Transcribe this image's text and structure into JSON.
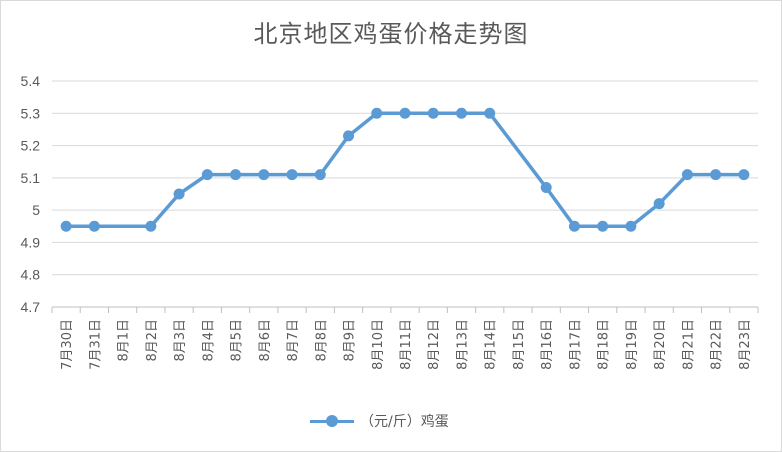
{
  "chart_data": {
    "type": "line",
    "title": "北京地区鸡蛋价格走势图",
    "categories": [
      "7月30日",
      "7月31日",
      "8月1日",
      "8月2日",
      "8月3日",
      "8月4日",
      "8月5日",
      "8月6日",
      "8月7日",
      "8月8日",
      "8月9日",
      "8月10日",
      "8月11日",
      "8月12日",
      "8月13日",
      "8月14日",
      "8月15日",
      "8月16日",
      "8月17日",
      "8月18日",
      "8月19日",
      "8月20日",
      "8月21日",
      "8月22日",
      "8月23日"
    ],
    "series": [
      {
        "name": "（元/斤）鸡蛋",
        "color": "#5b9bd5",
        "values": [
          4.95,
          4.95,
          null,
          4.95,
          5.05,
          5.11,
          5.11,
          5.11,
          5.11,
          5.11,
          5.23,
          5.3,
          5.3,
          5.3,
          5.3,
          5.3,
          null,
          5.07,
          4.95,
          4.95,
          4.95,
          5.02,
          5.11,
          5.11,
          5.11
        ]
      }
    ],
    "ylim": [
      4.7,
      5.4
    ],
    "yticks": [
      "5.4",
      "5.3",
      "5.2",
      "5.1",
      "5",
      "4.9",
      "4.8",
      "4.7"
    ],
    "grid": true,
    "legend_position": "bottom",
    "xlabel": "",
    "ylabel": ""
  }
}
